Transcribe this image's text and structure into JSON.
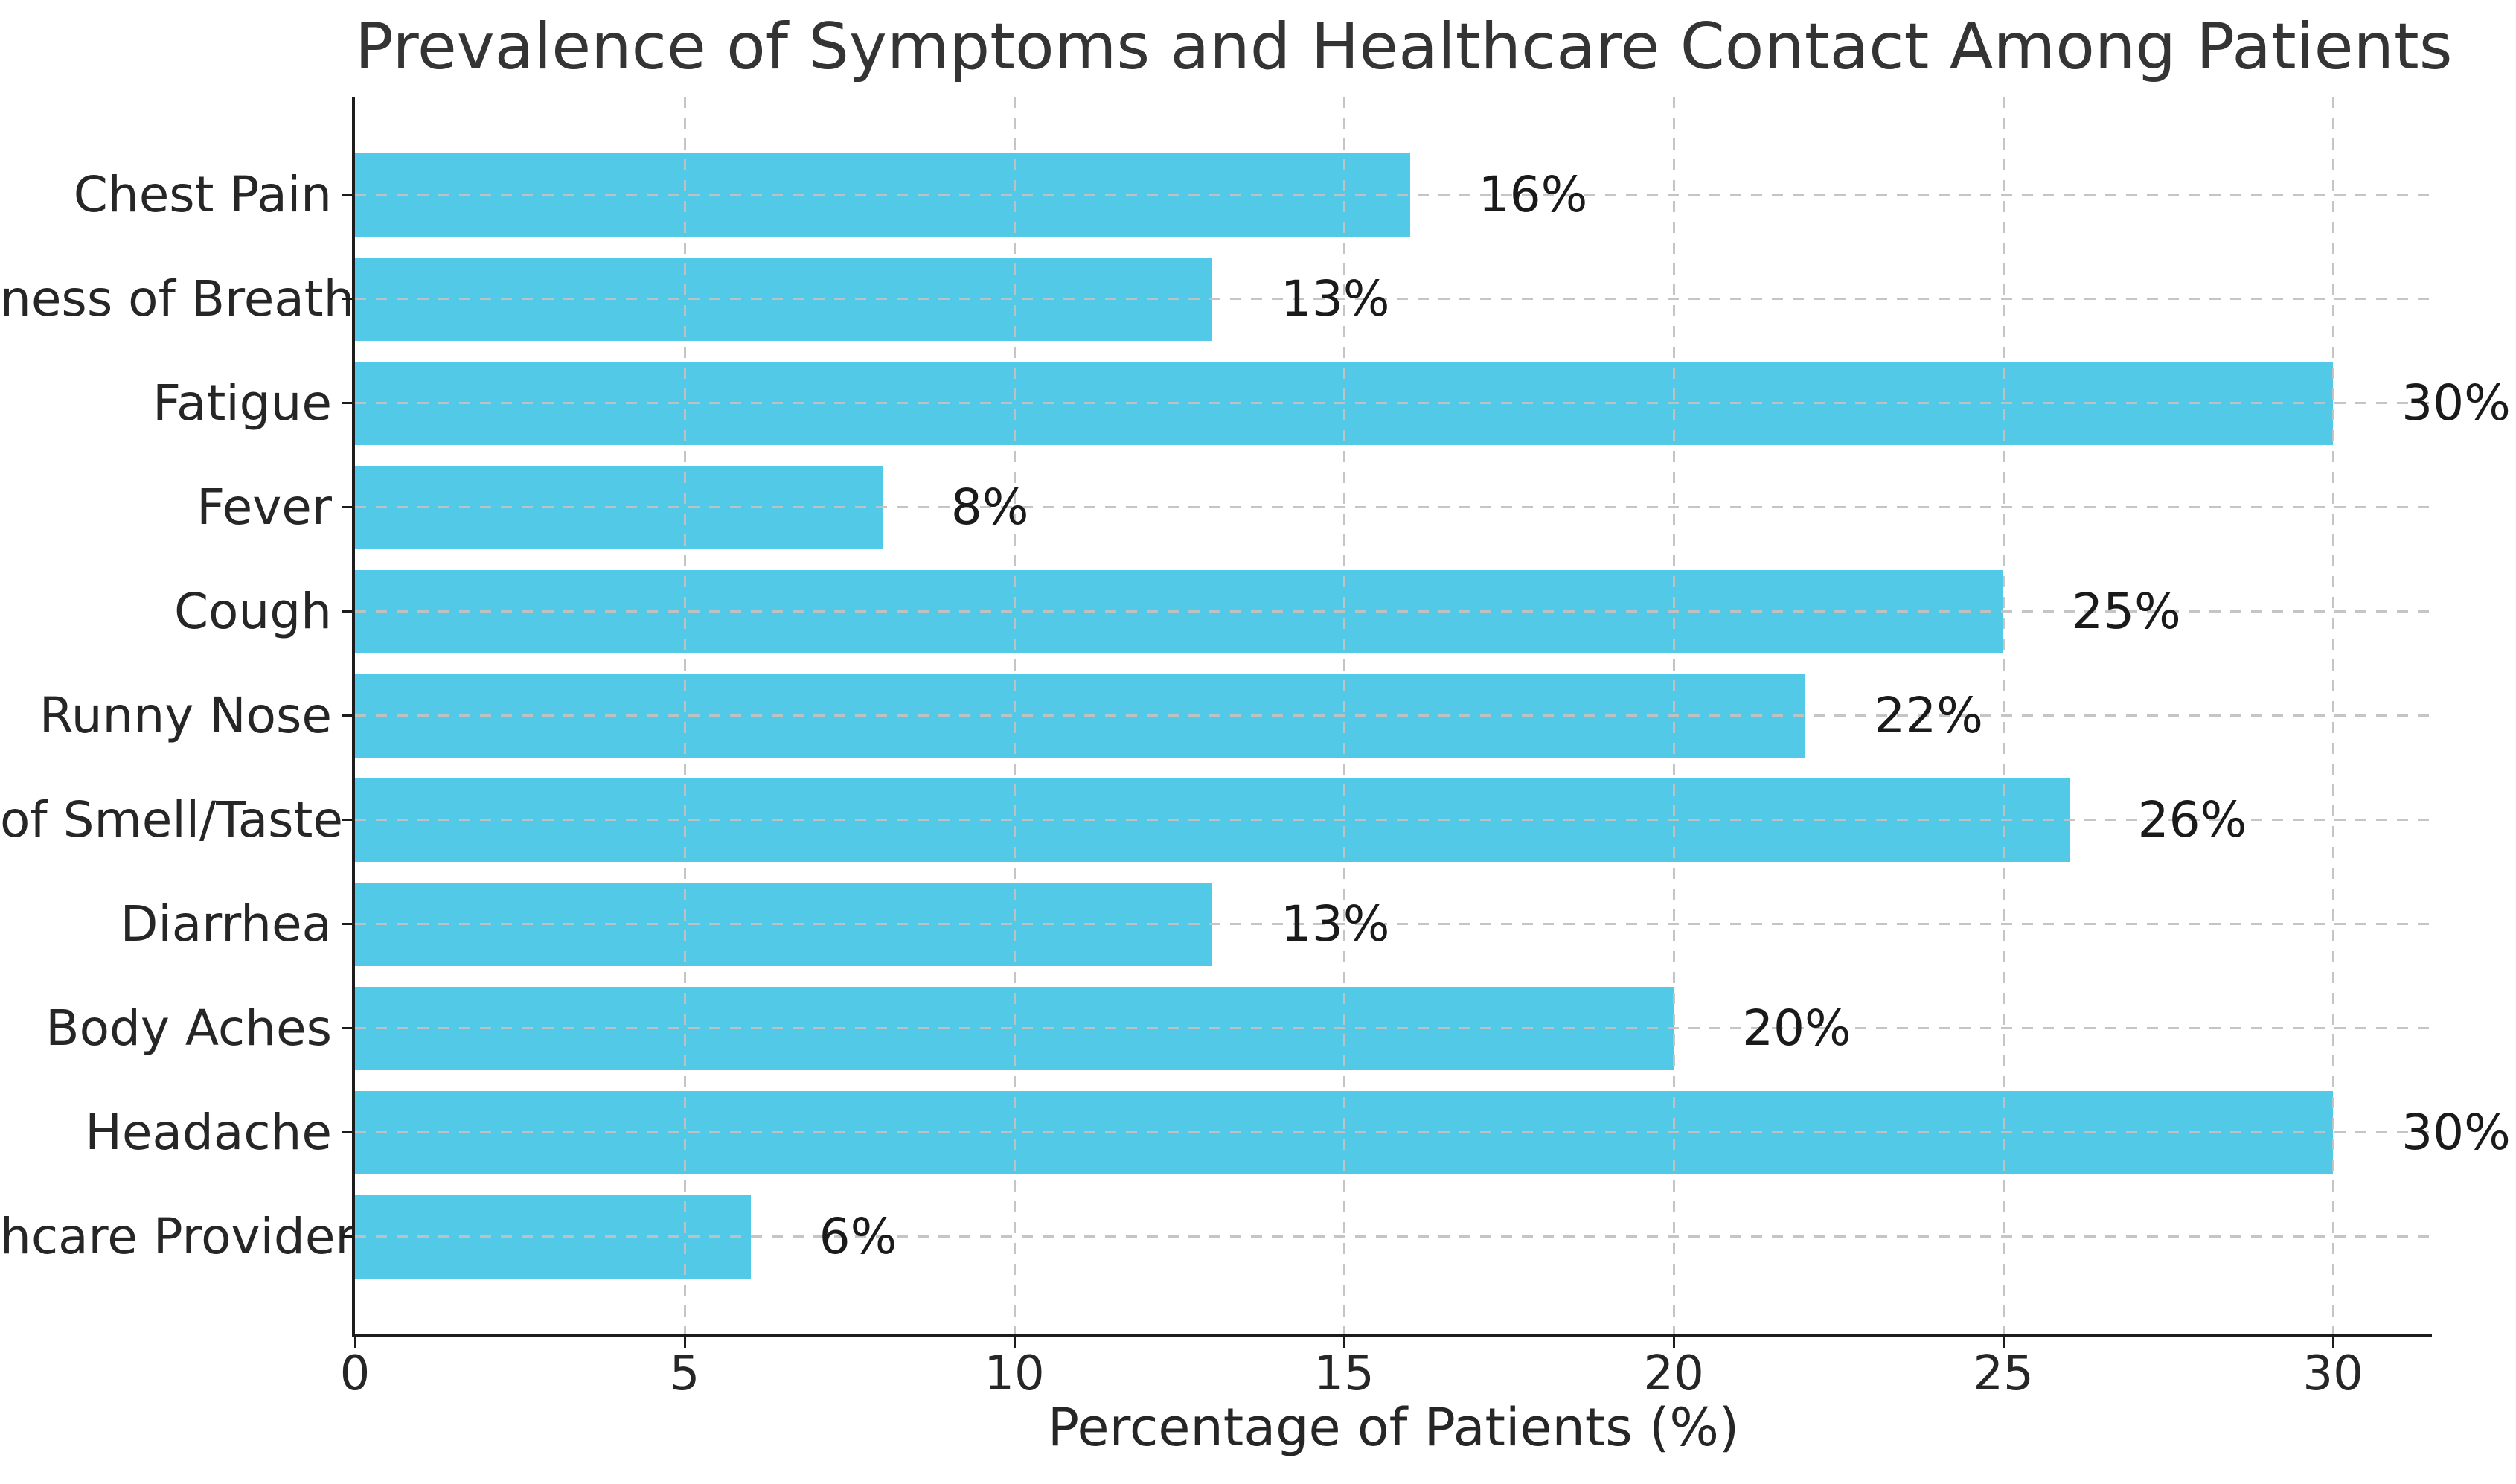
{
  "chart_data": {
    "type": "bar",
    "orientation": "horizontal",
    "title": "Prevalence of Symptoms and Healthcare Contact Among Patients",
    "xlabel": "Percentage of Patients (%)",
    "ylabel": "",
    "categories": [
      "Chest Pain",
      "ness of Breath",
      "Fatigue",
      "Fever",
      "Cough",
      "Runny Nose",
      "of Smell/Taste",
      "Diarrhea",
      "Body Aches",
      "Headache",
      "hcare Provider"
    ],
    "values": [
      16,
      13,
      30,
      8,
      25,
      22,
      26,
      13,
      20,
      30,
      6
    ],
    "value_labels": [
      "16%",
      "13%",
      "30%",
      "8%",
      "25%",
      "22%",
      "26%",
      "13%",
      "20%",
      "30%",
      "6%"
    ],
    "x_ticks": [
      0,
      5,
      10,
      15,
      20,
      25,
      30
    ],
    "x_tick_labels": [
      "0",
      "5",
      "10",
      "15",
      "20",
      "25",
      "30"
    ],
    "xlim": [
      0,
      31.5
    ],
    "grid": "dashed, x and y, drawn over bars",
    "legend": "none",
    "colors": {
      "bar": "#53c9e8",
      "grid": "#c2c2c2",
      "spine": "#1c1c1c",
      "text": "#262626",
      "title": "#343434",
      "background": "#ffffff"
    }
  }
}
